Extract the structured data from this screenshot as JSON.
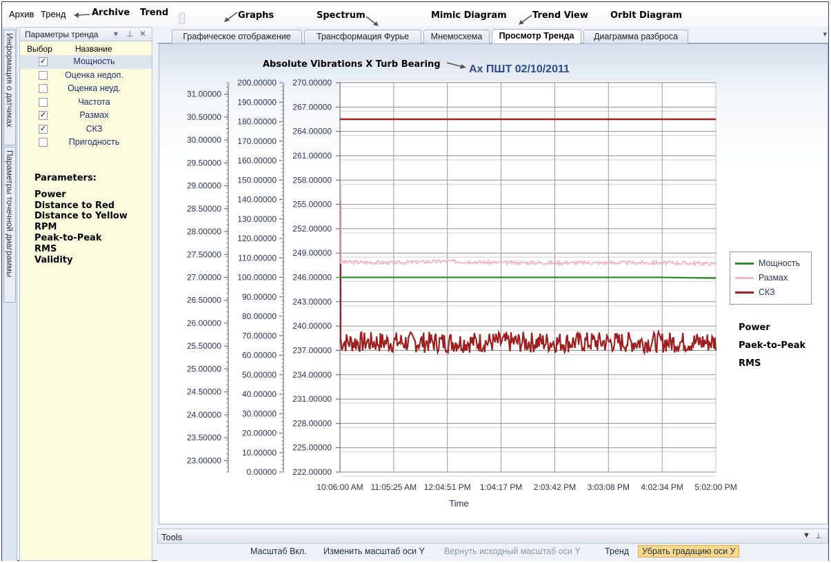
{
  "menu": {
    "archive": "Архив",
    "trend": "Тренд"
  },
  "annotations": {
    "archive": "Archive",
    "trend": "Trend",
    "graphs": "Graphs",
    "spectrum": "Spectrum",
    "mimic": "Mimic Diagram",
    "trend_view": "Trend View",
    "orbit": "Orbit Diagram",
    "chart_title_en": "Absolute Vibrations X Turb Bearing",
    "parameters_heading": "Parameters:",
    "parameters": [
      "Power",
      "Distance to Red",
      "Distance to Yellow",
      "RPM",
      "Peak-to-Peak",
      "RMS",
      "Validity"
    ],
    "legend_notes": [
      "Power",
      "Paek-to-Peak",
      "RMS"
    ]
  },
  "side_tabs": [
    "Информация о датчиках",
    "Параметры точечной диаграммы"
  ],
  "panel": {
    "title": "Параметры тренда",
    "col_select": "Выбор",
    "col_name": "Название",
    "rows": [
      {
        "name": "Мощность",
        "checked": true
      },
      {
        "name": "Оценка недоп.",
        "checked": false
      },
      {
        "name": "Оценка неуд.",
        "checked": false
      },
      {
        "name": "Частота",
        "checked": false
      },
      {
        "name": "Размах",
        "checked": true
      },
      {
        "name": "СКЗ",
        "checked": true
      },
      {
        "name": "Пригодность",
        "checked": false
      }
    ]
  },
  "tabs": [
    "Графическое отображение",
    "Трансформация Фурье",
    "Мнемосхема",
    "Просмотр Тренда",
    "Диаграмма разброса"
  ],
  "active_tab": 3,
  "chart_data": {
    "type": "line",
    "title": "Ах ПШТ 02/10/2011",
    "xlabel": "Time",
    "x_ticks": [
      "10:06:00 AM",
      "11:05:25 AM",
      "12:04:51 PM",
      "1:04:17 PM",
      "2:03:42 PM",
      "3:03:08 PM",
      "4:02:34 PM",
      "5:02:00 PM"
    ],
    "axes": [
      {
        "name": "left",
        "ylim": [
          22.75,
          31.25
        ],
        "ticks": [
          "31.00000",
          "30.50000",
          "30.00000",
          "29.50000",
          "29.00000",
          "28.50000",
          "28.00000",
          "27.50000",
          "27.00000",
          "26.50000",
          "26.00000",
          "25.50000",
          "25.00000",
          "24.50000",
          "24.00000",
          "23.50000",
          "23.00000"
        ]
      },
      {
        "name": "middle",
        "ylim": [
          0,
          200
        ],
        "ticks": [
          "200.00000",
          "190.00000",
          "180.00000",
          "170.00000",
          "160.00000",
          "150.00000",
          "140.00000",
          "130.00000",
          "120.00000",
          "110.00000",
          "100.00000",
          "90.00000",
          "80.00000",
          "70.00000",
          "60.00000",
          "50.00000",
          "40.00000",
          "30.00000",
          "20.00000",
          "10.00000",
          "0.00000"
        ]
      },
      {
        "name": "right",
        "ylim": [
          222,
          270
        ],
        "ticks": [
          "270.00000",
          "267.00000",
          "264.00000",
          "261.00000",
          "258.00000",
          "255.00000",
          "252.00000",
          "249.00000",
          "246.00000",
          "243.00000",
          "240.00000",
          "237.00000",
          "234.00000",
          "231.00000",
          "228.00000",
          "225.00000",
          "222.00000"
        ]
      }
    ],
    "series": [
      {
        "name": "Мощность",
        "color": "#2e8b2e",
        "values": [
          246.0,
          246.0,
          246.0,
          246.0,
          246.0,
          246.0,
          246.0,
          245.9
        ]
      },
      {
        "name": "Размах",
        "color": "#f2b8c6",
        "values": [
          247.9,
          247.8,
          248.0,
          247.8,
          247.8,
          247.8,
          247.8,
          247.7
        ]
      },
      {
        "name": "СКЗ",
        "color": "#9e1f1f",
        "values": [
          238.0,
          238.0,
          238.0,
          238.0,
          238.0,
          238.0,
          238.0,
          238.0
        ]
      }
    ],
    "extra_line": {
      "color": "#9e1f1f",
      "value": 265.5
    },
    "grid": true,
    "legend": "right"
  },
  "tools": {
    "title": "Tools",
    "buttons": [
      "Масштаб Вкл.",
      "Изменить масштаб оси Y",
      "Вернуть исходный масштаб оси Y",
      "Тренд",
      "Убрать градацию оси У"
    ]
  }
}
